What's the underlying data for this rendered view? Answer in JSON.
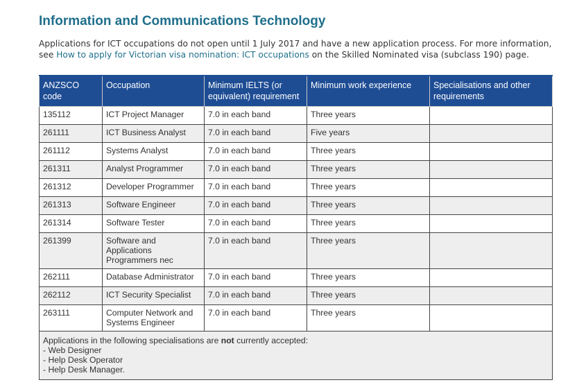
{
  "page": {
    "title": "Information and Communications Technology",
    "intro_part1": "Applications for ICT occupations do not open until 1 July 2017 and have a new application process. For more information, see ",
    "intro_link": "How to apply for Victorian visa nomination: ICT occupations",
    "intro_part2": " on the Skilled Nominated visa (subclass 190) page."
  },
  "table": {
    "headers": {
      "anzsco": "ANZSCO code",
      "occupation": "Occupation",
      "ielts": "Minimum IELTS (or equivalent) requirement",
      "experience": "Minimum work experience",
      "specialisations": "Specialisations and other requirements"
    },
    "rows": [
      {
        "code": "135112",
        "occupation": "ICT Project Manager",
        "ielts": "7.0 in each band",
        "experience": "Three years",
        "other": ""
      },
      {
        "code": "261111",
        "occupation": "ICT Business Analyst",
        "ielts": "7.0 in each band",
        "experience": "Five years",
        "other": ""
      },
      {
        "code": "261112",
        "occupation": "Systems Analyst",
        "ielts": "7.0 in each band",
        "experience": "Three years",
        "other": ""
      },
      {
        "code": "261311",
        "occupation": "Analyst Programmer",
        "ielts": "7.0 in each band",
        "experience": "Three years",
        "other": ""
      },
      {
        "code": "261312",
        "occupation": "Developer Programmer",
        "ielts": "7.0 in each band",
        "experience": "Three years",
        "other": ""
      },
      {
        "code": "261313",
        "occupation": "Software Engineer",
        "ielts": "7.0 in each band",
        "experience": "Three years",
        "other": ""
      },
      {
        "code": "261314",
        "occupation": "Software Tester",
        "ielts": "7.0 in each band",
        "experience": "Three years",
        "other": ""
      },
      {
        "code": "261399",
        "occupation": "Software and Applications Programmers nec",
        "ielts": "7.0 in each band",
        "experience": "Three years",
        "other": ""
      },
      {
        "code": "262111",
        "occupation": "Database Administrator",
        "ielts": "7.0 in each band",
        "experience": "Three years",
        "other": ""
      },
      {
        "code": "262112",
        "occupation": "ICT Security Specialist",
        "ielts": "7.0 in each band",
        "experience": "Three years",
        "other": ""
      },
      {
        "code": "263111",
        "occupation": "Computer Network and Systems Engineer",
        "ielts": "7.0 in each band",
        "experience": "Three years",
        "other": ""
      }
    ],
    "note": {
      "line1_before": "Applications in the following specialisations are ",
      "line1_bold": "not",
      "line1_after": " currently accepted:",
      "items": [
        "- Web Designer",
        "- Help Desk Operator",
        "- Help Desk Manager."
      ]
    }
  },
  "colors": {
    "heading": "#1f6f8b",
    "link": "#1f6f8b",
    "header_bg": "#1e4d94",
    "alt_row_bg": "#eeeeee"
  }
}
